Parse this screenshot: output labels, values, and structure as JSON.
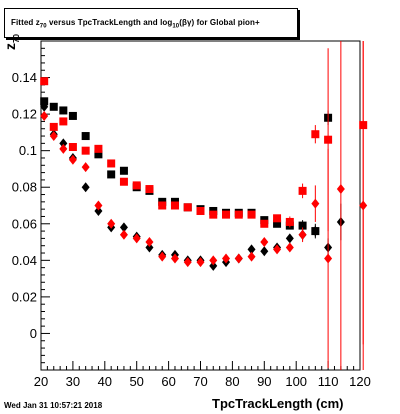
{
  "title": {
    "pre": "Fitted  z",
    "sub1": "70",
    "mid": " versus TpcTrackLength and log",
    "sub2": "10",
    "post": "(βγ) for Global pion+"
  },
  "ylabel_main": "z",
  "ylabel_sub": "70",
  "xlabel": "TpcTrackLength (cm)",
  "datestamp": "Wed Jan 31 10:57:21 2018",
  "chart_data": {
    "type": "scatter",
    "title": "Fitted  z70 versus TpcTrackLength and log10(βγ) for Global pion+",
    "xlabel": "TpcTrackLength (cm)",
    "ylabel": "z70",
    "xlim": [
      20,
      120
    ],
    "ylim": [
      -0.02,
      0.16
    ],
    "x_ticks": [
      20,
      30,
      40,
      50,
      60,
      70,
      80,
      90,
      100,
      110,
      120
    ],
    "x_tick_labels": [
      "20",
      "30",
      "40",
      "50",
      "60",
      "70",
      "80",
      "90",
      "100",
      "110",
      "120"
    ],
    "y_ticks": [
      0,
      0.02,
      0.04,
      0.06,
      0.08,
      0.1,
      0.12,
      0.14
    ],
    "y_tick_labels": [
      "0",
      "0.02",
      "0.04",
      "0.06",
      "0.08",
      "0.1",
      "0.12",
      "0.14"
    ],
    "colors": {
      "black": "#000000",
      "red": "#ff0000"
    },
    "series": [
      {
        "marker": "square",
        "color": "#000000",
        "x": [
          21,
          24,
          27,
          30,
          34,
          38,
          42,
          46,
          50,
          54,
          58,
          62,
          66,
          70,
          74,
          78,
          82,
          86,
          90,
          94,
          98,
          102,
          106,
          110
        ],
        "y": [
          0.127,
          0.124,
          0.122,
          0.119,
          0.108,
          0.098,
          0.087,
          0.089,
          0.08,
          0.078,
          0.072,
          0.072,
          0.069,
          0.068,
          0.067,
          0.066,
          0.066,
          0.066,
          0.062,
          0.06,
          0.059,
          0.059,
          0.056,
          0.118
        ],
        "err": [
          0.002,
          0.002,
          0.002,
          0.002,
          0.002,
          0.002,
          0.002,
          0.002,
          0.002,
          0.002,
          0.002,
          0.002,
          0.002,
          0.002,
          0.002,
          0.002,
          0.002,
          0.002,
          0.002,
          0.002,
          0.002,
          0.003,
          0.003,
          0.004
        ]
      },
      {
        "marker": "square",
        "color": "#ff0000",
        "x": [
          21,
          24,
          27,
          30,
          34,
          38,
          42,
          46,
          50,
          54,
          58,
          62,
          66,
          70,
          74,
          78,
          82,
          86,
          90,
          94,
          98,
          102,
          106,
          110,
          121
        ],
        "y": [
          0.138,
          0.113,
          0.116,
          0.102,
          0.1,
          0.101,
          0.093,
          0.083,
          0.081,
          0.079,
          0.07,
          0.07,
          0.069,
          0.067,
          0.065,
          0.065,
          0.065,
          0.065,
          0.06,
          0.063,
          0.061,
          0.078,
          0.109,
          0.106,
          0.114
        ],
        "err": [
          0.002,
          0.002,
          0.002,
          0.002,
          0.002,
          0.002,
          0.002,
          0.002,
          0.002,
          0.002,
          0.002,
          0.002,
          0.002,
          0.002,
          0.002,
          0.002,
          0.002,
          0.002,
          0.002,
          0.002,
          0.003,
          0.004,
          0.005,
          0.05,
          0.12
        ]
      },
      {
        "marker": "diamond",
        "color": "#000000",
        "x": [
          21,
          24,
          27,
          30,
          34,
          38,
          42,
          46,
          50,
          54,
          58,
          62,
          66,
          70,
          74,
          78,
          82,
          86,
          90,
          94,
          98,
          102,
          106,
          110,
          114
        ],
        "y": [
          0.124,
          0.109,
          0.104,
          0.096,
          0.08,
          0.067,
          0.058,
          0.058,
          0.053,
          0.047,
          0.043,
          0.043,
          0.04,
          0.04,
          0.037,
          0.039,
          0.041,
          0.046,
          0.045,
          0.047,
          0.052,
          0.054,
          0.056,
          0.047,
          0.061
        ],
        "err": [
          0.002,
          0.002,
          0.002,
          0.002,
          0.002,
          0.002,
          0.002,
          0.002,
          0.002,
          0.002,
          0.002,
          0.002,
          0.002,
          0.002,
          0.002,
          0.002,
          0.002,
          0.002,
          0.002,
          0.002,
          0.002,
          0.003,
          0.004,
          0.005,
          0.01
        ]
      },
      {
        "marker": "diamond",
        "color": "#ff0000",
        "x": [
          21,
          24,
          27,
          30,
          34,
          38,
          42,
          46,
          50,
          54,
          58,
          62,
          66,
          70,
          74,
          78,
          82,
          86,
          90,
          94,
          98,
          102,
          106,
          110,
          114,
          121
        ],
        "y": [
          0.119,
          0.108,
          0.101,
          0.095,
          0.091,
          0.07,
          0.06,
          0.054,
          0.052,
          0.05,
          0.042,
          0.041,
          0.039,
          0.039,
          0.04,
          0.041,
          0.041,
          0.042,
          0.05,
          0.046,
          0.047,
          0.054,
          0.071,
          0.041,
          0.079,
          0.07
        ]
      }
    ],
    "error_bars_red_diamond": [
      0.002,
      0.002,
      0.002,
      0.002,
      0.002,
      0.002,
      0.002,
      0.002,
      0.002,
      0.002,
      0.002,
      0.002,
      0.002,
      0.002,
      0.002,
      0.002,
      0.002,
      0.002,
      0.002,
      0.002,
      0.002,
      0.004,
      0.01,
      0.06,
      0.12,
      0.12
    ]
  }
}
